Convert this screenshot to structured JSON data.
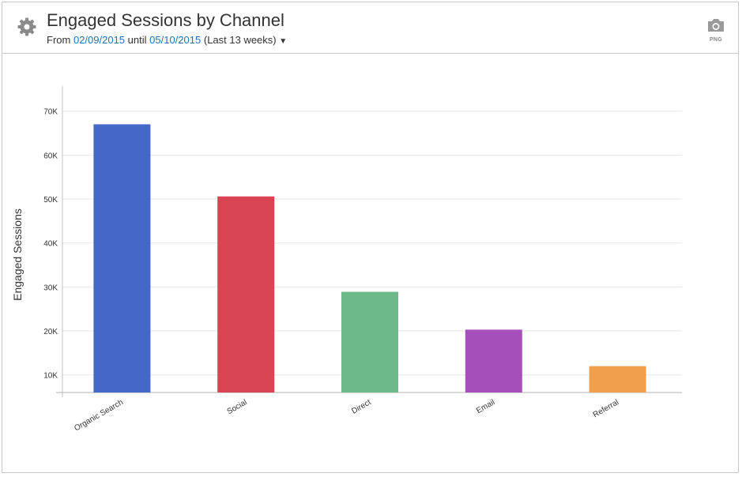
{
  "header": {
    "title": "Engaged Sessions by Channel",
    "from_label": "From",
    "start_date": "02/09/2015",
    "until_label": "until",
    "end_date": "05/10/2015",
    "range_label": "(Last 13 weeks)",
    "png_label": "PNG"
  },
  "chart_data": {
    "type": "bar",
    "title": "Engaged Sessions by Channel",
    "categories": [
      "Organic Search",
      "Social",
      "Direct",
      "Email",
      "Referral"
    ],
    "values": [
      67000,
      50600,
      28900,
      20300,
      12000
    ],
    "colors": [
      "#4467c8",
      "#d94452",
      "#6db98a",
      "#a74fb8",
      "#f0a04c"
    ],
    "ylabel": "Engaged Sessions",
    "xlabel": "",
    "ylim": [
      6000,
      73000
    ],
    "yticks": [
      10000,
      20000,
      30000,
      40000,
      50000,
      60000,
      70000
    ],
    "ytick_labels": [
      "10K",
      "20K",
      "30K",
      "40K",
      "50K",
      "60K",
      "70K"
    ],
    "grid": true,
    "legend": "none"
  }
}
